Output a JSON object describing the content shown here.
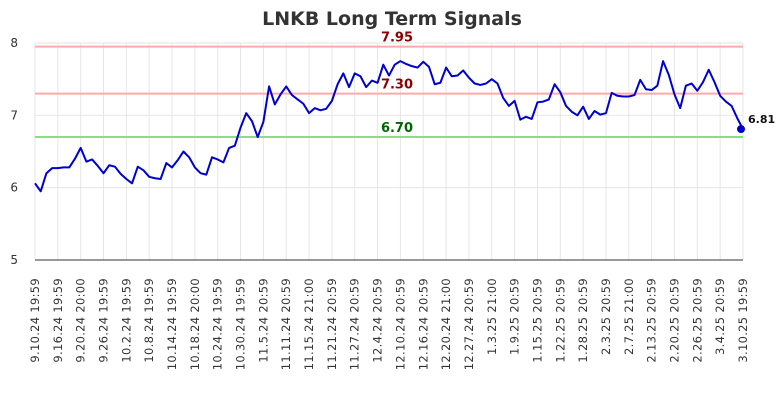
{
  "chart_data": {
    "type": "line",
    "title": "LNKB Long Term Signals",
    "xlabel": "",
    "ylabel": "",
    "ylim": [
      5,
      8
    ],
    "yticks": [
      "5",
      "6",
      "7",
      "8"
    ],
    "grid": true,
    "x_tick_labels": [
      "9.10.24 19:59",
      "9.16.24 19:59",
      "9.20.24 20:00",
      "9.26.24 19:59",
      "10.2.24 19:59",
      "10.8.24 19:59",
      "10.14.24 19:59",
      "10.18.24 20:00",
      "10.24.24 19:59",
      "10.30.24 19:59",
      "11.5.24 20:59",
      "11.11.24 20:59",
      "11.15.24 21:00",
      "11.21.24 20:59",
      "11.27.24 20:59",
      "12.4.24 20:59",
      "12.10.24 20:59",
      "12.16.24 20:59",
      "12.20.24 21:00",
      "12.27.24 20:59",
      "1.3.25 21:00",
      "1.9.25 20:59",
      "1.15.25 20:59",
      "1.22.25 20:59",
      "1.28.25 20:59",
      "2.3.25 20:59",
      "2.7.25 21:00",
      "2.13.25 20:59",
      "2.20.25 20:59",
      "2.26.25 20:59",
      "3.4.25 20:59",
      "3.10.25 19:59"
    ],
    "series": [
      {
        "color": "#0000cc",
        "values": [
          6.06,
          5.95,
          6.2,
          6.27,
          6.27,
          6.28,
          6.28,
          6.4,
          6.55,
          6.36,
          6.39,
          6.3,
          6.2,
          6.31,
          6.29,
          6.19,
          6.12,
          6.06,
          6.29,
          6.24,
          6.15,
          6.13,
          6.12,
          6.34,
          6.28,
          6.38,
          6.5,
          6.42,
          6.28,
          6.2,
          6.18,
          6.42,
          6.39,
          6.35,
          6.55,
          6.58,
          6.83,
          7.03,
          6.92,
          6.7,
          6.91,
          7.4,
          7.15,
          7.29,
          7.4,
          7.28,
          7.22,
          7.16,
          7.03,
          7.1,
          7.07,
          7.09,
          7.2,
          7.43,
          7.58,
          7.39,
          7.58,
          7.54,
          7.39,
          7.48,
          7.45,
          7.7,
          7.55,
          7.7,
          7.75,
          7.71,
          7.68,
          7.66,
          7.74,
          7.67,
          7.43,
          7.45,
          7.66,
          7.54,
          7.55,
          7.62,
          7.52,
          7.44,
          7.42,
          7.44,
          7.5,
          7.44,
          7.24,
          7.13,
          7.2,
          6.94,
          6.98,
          6.95,
          7.18,
          7.19,
          7.22,
          7.43,
          7.32,
          7.13,
          7.05,
          7.0,
          7.12,
          6.95,
          7.06,
          7.01,
          7.03,
          7.31,
          7.27,
          7.26,
          7.26,
          7.28,
          7.49,
          7.36,
          7.35,
          7.41,
          7.75,
          7.56,
          7.29,
          7.1,
          7.41,
          7.44,
          7.34,
          7.46,
          7.63,
          7.46,
          7.27,
          7.19,
          7.13,
          6.96,
          6.81
        ]
      }
    ],
    "reference_lines": [
      {
        "value": 7.95,
        "label": "7.95",
        "color": "#ffaaaa",
        "label_color": "#8b0000"
      },
      {
        "value": 7.3,
        "label": "7.30",
        "color": "#ffaaaa",
        "label_color": "#8b0000"
      },
      {
        "value": 6.7,
        "label": "6.70",
        "color": "#88dd88",
        "label_color": "#006600"
      }
    ],
    "last_point": {
      "value": 6.81,
      "label": "6.81"
    }
  }
}
